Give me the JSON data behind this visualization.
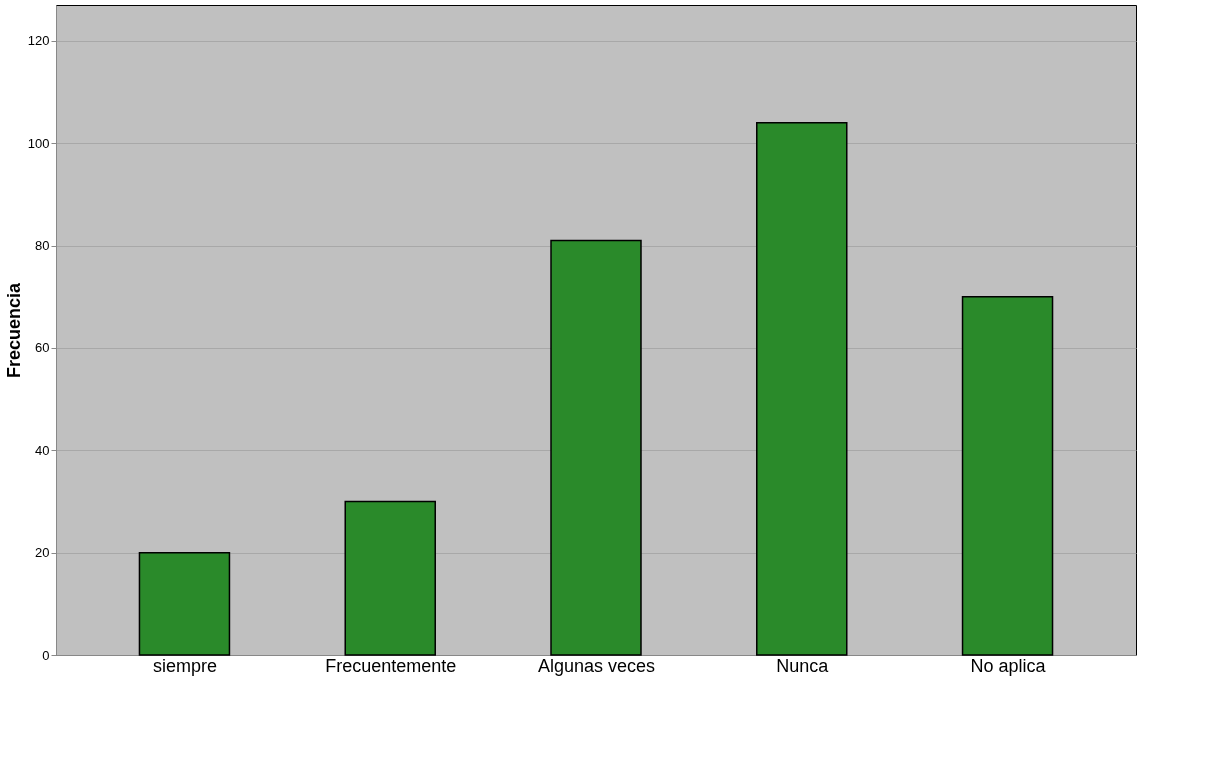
{
  "chart_data": {
    "type": "bar",
    "ylabel": "Frecuencia",
    "categories": [
      "siempre",
      "Frecuentemente",
      "Algunas veces",
      "Nunca",
      "No aplica"
    ],
    "values": [
      20,
      30,
      81,
      104,
      70
    ],
    "color": "#2a8a2a",
    "ylim": [
      0,
      127
    ],
    "yticks": [
      0,
      20,
      40,
      60,
      80,
      100,
      120
    ],
    "grid": "y"
  }
}
